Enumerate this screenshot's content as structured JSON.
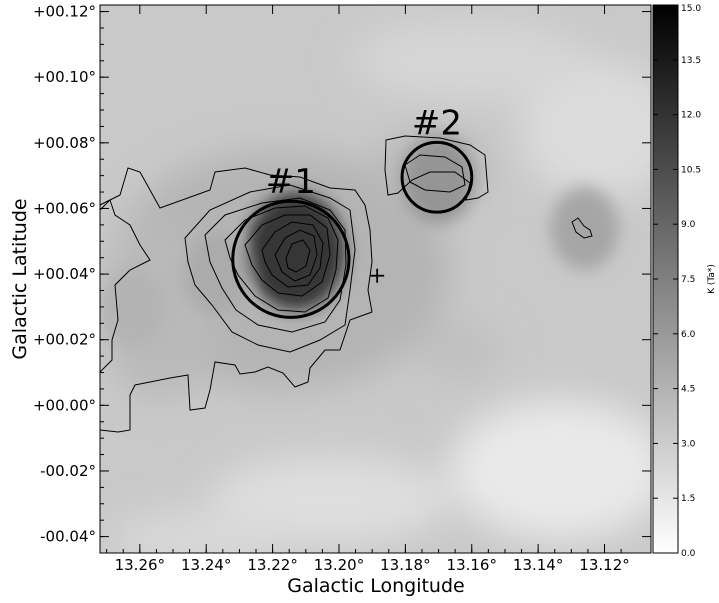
{
  "chart_data": {
    "type": "heatmap",
    "xlabel": "Galactic Longitude",
    "ylabel": "Galactic Latitude",
    "xlim": [
      13.272,
      13.106
    ],
    "ylim": [
      -0.045,
      0.122
    ],
    "x_ticks": [
      {
        "value": 13.26,
        "label": "13.26°"
      },
      {
        "value": 13.24,
        "label": "13.24°"
      },
      {
        "value": 13.22,
        "label": "13.22°"
      },
      {
        "value": 13.2,
        "label": "13.20°"
      },
      {
        "value": 13.18,
        "label": "13.18°"
      },
      {
        "value": 13.16,
        "label": "13.16°"
      },
      {
        "value": 13.14,
        "label": "13.14°"
      },
      {
        "value": 13.12,
        "label": "13.12°"
      }
    ],
    "y_ticks": [
      {
        "value": 0.12,
        "label": "+00.12°"
      },
      {
        "value": 0.1,
        "label": "+00.10°"
      },
      {
        "value": 0.08,
        "label": "+00.08°"
      },
      {
        "value": 0.06,
        "label": "+00.06°"
      },
      {
        "value": 0.04,
        "label": "+00.04°"
      },
      {
        "value": 0.02,
        "label": "+00.02°"
      },
      {
        "value": 0.0,
        "label": "+00.00°"
      },
      {
        "value": -0.02,
        "label": "-00.02°"
      },
      {
        "value": -0.04,
        "label": "-00.04°"
      }
    ],
    "colorbar": {
      "title": "K (Ta*)",
      "min": 0.0,
      "max": 15.0,
      "colormap": "gray_r",
      "ticks": [
        "0.0",
        "1.5",
        "3.0",
        "4.5",
        "6.0",
        "7.5",
        "9.0",
        "10.5",
        "12.0",
        "13.5",
        "15.0"
      ]
    },
    "sources": [
      {
        "label": "#1",
        "l": 13.2145,
        "b": 0.0445,
        "radius_deg": 0.0175
      },
      {
        "label": "#2",
        "l": 13.1705,
        "b": 0.0695,
        "radius_deg": 0.0105
      }
    ],
    "marker": {
      "symbol": "+",
      "l": 13.1885,
      "b": 0.0395
    },
    "emission_peaks": [
      {
        "l": 13.213,
        "b": 0.047,
        "level": 12.5
      },
      {
        "l": 13.17,
        "b": 0.069,
        "level": 6.5
      },
      {
        "l": 13.126,
        "b": 0.054,
        "level": 5.5
      },
      {
        "l": 13.237,
        "b": 0.04,
        "level": 5.0
      },
      {
        "l": 13.262,
        "b": 0.03,
        "level": 4.5
      }
    ]
  },
  "colors": {
    "background": "#ffffff",
    "contour": "#000000",
    "circle": "#000000",
    "map_base": "#c9c9c9"
  }
}
